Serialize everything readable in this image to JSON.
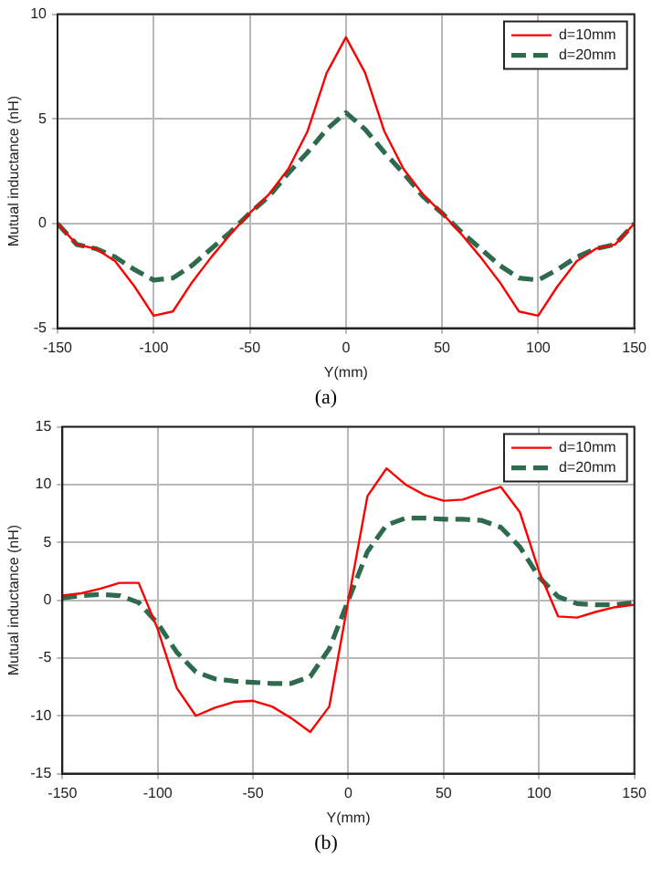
{
  "chart_data": [
    {
      "type": "line",
      "xlabel": "Y(mm)",
      "ylabel": "Mutual inductance (nH)",
      "annotations": [
        "(a)"
      ],
      "xlim": [
        -150,
        150
      ],
      "xticks": [
        -150,
        -100,
        -50,
        0,
        50,
        100,
        150
      ],
      "ylim": [
        -5,
        10
      ],
      "yticks": [
        -5,
        0,
        5,
        10
      ],
      "grid": true,
      "legend": "top right",
      "marker": "none",
      "x": [
        -150,
        -140,
        -130,
        -120,
        -110,
        -100,
        -90,
        -80,
        -70,
        -60,
        -50,
        -40,
        -30,
        -20,
        -10,
        0,
        10,
        20,
        30,
        40,
        50,
        60,
        70,
        80,
        90,
        100,
        110,
        120,
        130,
        140,
        150
      ],
      "series": [
        {
          "name": "d=10mm",
          "color": "#ff0000",
          "line_style": "solid",
          "values": [
            0,
            -1,
            -1.2,
            -1.8,
            -3,
            -4.4,
            -4.2,
            -2.8,
            -1.6,
            -0.5,
            0.5,
            1.4,
            2.6,
            4.4,
            7.2,
            8.9,
            7.2,
            4.4,
            2.6,
            1.4,
            0.5,
            -0.5,
            -1.6,
            -2.8,
            -4.2,
            -4.4,
            -3,
            -1.8,
            -1.2,
            -1,
            0
          ]
        },
        {
          "name": "d=20mm",
          "color": "#2e6b4e",
          "line_style": "dashed",
          "values": [
            0,
            -1,
            -1.2,
            -1.6,
            -2.2,
            -2.7,
            -2.6,
            -2,
            -1.2,
            -0.4,
            0.5,
            1.3,
            2.4,
            3.4,
            4.5,
            5.3,
            4.5,
            3.4,
            2.4,
            1.3,
            0.5,
            -0.4,
            -1.2,
            -2,
            -2.6,
            -2.7,
            -2.2,
            -1.6,
            -1.2,
            -1,
            0
          ]
        }
      ]
    },
    {
      "type": "line",
      "xlabel": "Y(mm)",
      "ylabel": "Mutual inductance (nH)",
      "annotations": [
        "(b)"
      ],
      "xlim": [
        -150,
        150
      ],
      "xticks": [
        -150,
        -100,
        -50,
        0,
        50,
        100,
        150
      ],
      "ylim": [
        -15,
        15
      ],
      "yticks": [
        -15,
        -10,
        -5,
        0,
        5,
        10,
        15
      ],
      "grid": true,
      "legend": "top right",
      "marker": "none",
      "x": [
        -150,
        -140,
        -130,
        -120,
        -110,
        -100,
        -90,
        -80,
        -70,
        -60,
        -50,
        -40,
        -30,
        -20,
        -10,
        0,
        10,
        20,
        30,
        40,
        50,
        60,
        70,
        80,
        90,
        100,
        110,
        120,
        130,
        140,
        150
      ],
      "series": [
        {
          "name": "d=10mm",
          "color": "#ff0000",
          "line_style": "solid",
          "values": [
            0.4,
            0.6,
            1,
            1.5,
            1.5,
            -2.5,
            -7.6,
            -10,
            -9.3,
            -8.8,
            -8.7,
            -9.2,
            -10.2,
            -11.4,
            -9.2,
            0,
            9,
            11.4,
            10,
            9.1,
            8.6,
            8.7,
            9.3,
            9.8,
            7.6,
            2.5,
            -1.4,
            -1.5,
            -1,
            -0.6,
            -0.4
          ]
        },
        {
          "name": "d=20mm",
          "color": "#2e6b4e",
          "line_style": "dashed",
          "values": [
            0.2,
            0.4,
            0.5,
            0.4,
            -0.2,
            -2,
            -4.5,
            -6.2,
            -6.8,
            -7,
            -7.1,
            -7.2,
            -7.2,
            -6.6,
            -4.2,
            0,
            4.2,
            6.5,
            7.1,
            7.1,
            7,
            7,
            6.9,
            6.3,
            4.6,
            2,
            0.3,
            -0.3,
            -0.4,
            -0.4,
            -0.2
          ]
        }
      ]
    }
  ]
}
